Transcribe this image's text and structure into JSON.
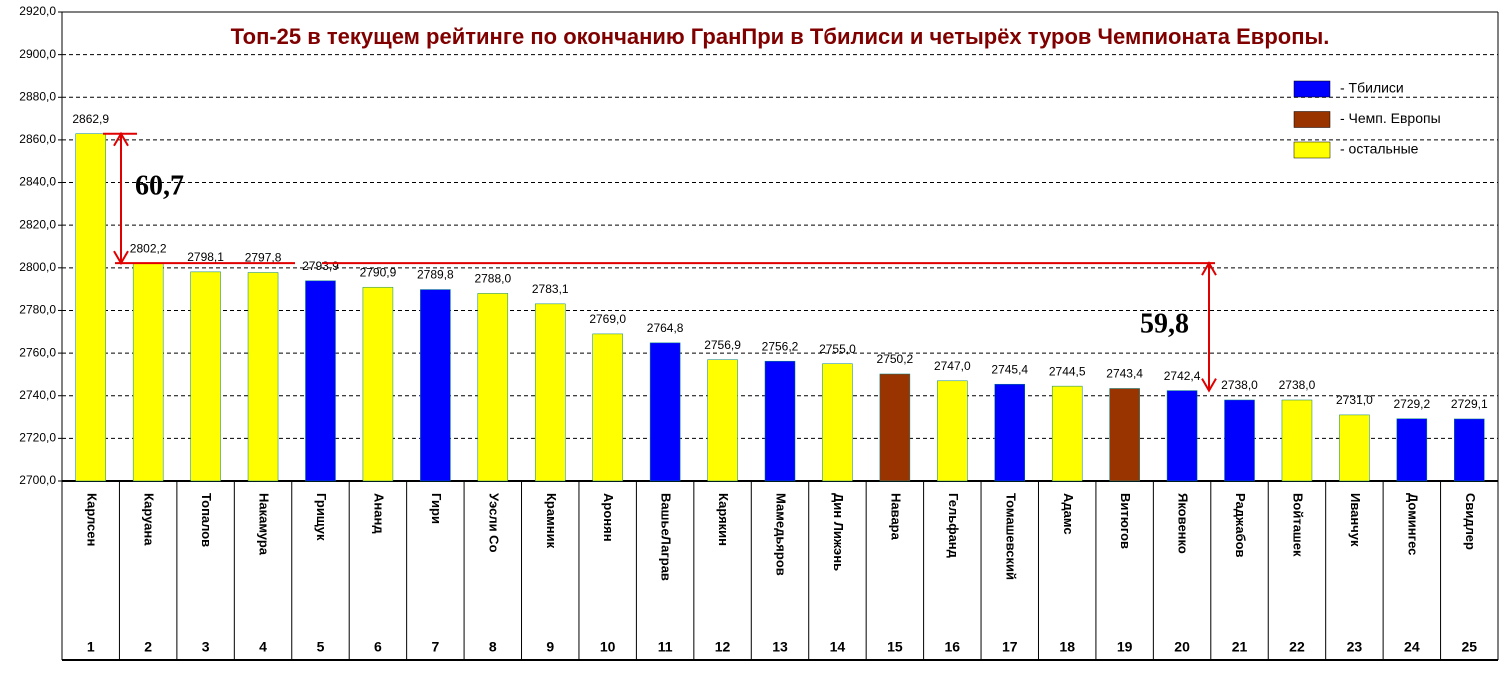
{
  "chart_data": {
    "type": "bar",
    "title": "Топ-25 в текущем рейтинге по окончанию ГранПри в Тбилиси и четырёх туров Чемпионата Европы.",
    "categories": [
      "Карлсен",
      "Каруана",
      "Топалов",
      "Накамура",
      "Грищук",
      "Ананд",
      "Гири",
      "Уэсли Со",
      "Крамник",
      "Аронян",
      "ВашьеЛаграв",
      "Карякин",
      "Мамедьяров",
      "Дин Лижэнь",
      "Навара",
      "Гельфанд",
      "Томашевский",
      "Адамс",
      "Витюгов",
      "Яковенко",
      "Раджабов",
      "Войташек",
      "Иванчук",
      "Домингес",
      "Свидлер"
    ],
    "ranks": [
      1,
      2,
      3,
      4,
      5,
      6,
      7,
      8,
      9,
      10,
      11,
      12,
      13,
      14,
      15,
      16,
      17,
      18,
      19,
      20,
      21,
      22,
      23,
      24,
      25
    ],
    "values": [
      2862.9,
      2802.2,
      2798.1,
      2797.8,
      2793.9,
      2790.9,
      2789.8,
      2788.0,
      2783.1,
      2769.0,
      2764.8,
      2756.9,
      2756.2,
      2755.0,
      2750.2,
      2747.0,
      2745.4,
      2744.5,
      2743.4,
      2742.4,
      2738.0,
      2738.0,
      2731.0,
      2729.2,
      2729.1
    ],
    "value_labels": [
      "2862,9",
      "2802,2",
      "2798,1",
      "2797,8",
      "2793,9",
      "2790,9",
      "2789,8",
      "2788,0",
      "2783,1",
      "2769,0",
      "2764,8",
      "2756,9",
      "2756,2",
      "2755,0",
      "2750,2",
      "2747,0",
      "2745,4",
      "2744,5",
      "2743,4",
      "2742,4",
      "2738,0",
      "2738,0",
      "2731,0",
      "2729,2",
      "2729,1"
    ],
    "colors": [
      "#ffff00",
      "#ffff00",
      "#ffff00",
      "#ffff00",
      "#0000ff",
      "#ffff00",
      "#0000ff",
      "#ffff00",
      "#ffff00",
      "#ffff00",
      "#0000ff",
      "#ffff00",
      "#0000ff",
      "#ffff00",
      "#993300",
      "#ffff00",
      "#0000ff",
      "#ffff00",
      "#993300",
      "#0000ff",
      "#0000ff",
      "#ffff00",
      "#ffff00",
      "#0000ff",
      "#0000ff"
    ],
    "legend": [
      {
        "name": "- Тбилиси",
        "color": "#0000ff"
      },
      {
        "name": "- Чемп. Европы",
        "color": "#993300"
      },
      {
        "name": "- остальные",
        "color": "#ffff00"
      }
    ],
    "annotations": [
      "60,7",
      "59,8"
    ],
    "ylim": [
      2700,
      2920
    ],
    "yticks": [
      {
        "value": 2700,
        "label": "2700,0"
      },
      {
        "value": 2720,
        "label": "2720,0"
      },
      {
        "value": 2740,
        "label": "2740,0"
      },
      {
        "value": 2760,
        "label": "2760,0"
      },
      {
        "value": 2780,
        "label": "2780,0"
      },
      {
        "value": 2800,
        "label": "2800,0"
      },
      {
        "value": 2820,
        "label": "2820,0"
      },
      {
        "value": 2840,
        "label": "2840,0"
      },
      {
        "value": 2860,
        "label": "2860,0"
      },
      {
        "value": 2880,
        "label": "2880,0"
      },
      {
        "value": 2900,
        "label": "2900,0"
      },
      {
        "value": 2920,
        "label": "2920,0"
      }
    ],
    "grid": true
  }
}
